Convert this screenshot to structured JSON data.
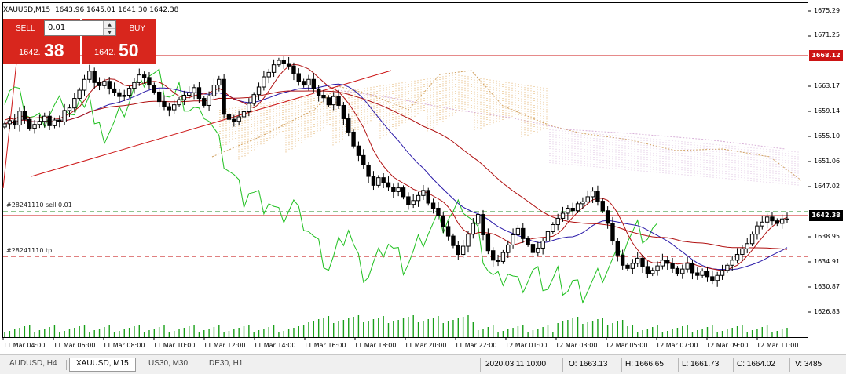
{
  "header": {
    "symbol": "XAUUSD,M15",
    "ohlc": "1643.96 1645.01 1641.30 1642.38"
  },
  "trade_panel": {
    "sell_label": "SELL",
    "buy_label": "BUY",
    "lot_value": "0.01",
    "sell_price_small": "1642.",
    "sell_price_big": "38",
    "buy_price_small": "1642.",
    "buy_price_big": "50"
  },
  "orders": {
    "sell_order_label": "#28241110 sell 0.01",
    "tp_order_label": "#28241110 tp"
  },
  "price_axis": {
    "labels": [
      "1675.29",
      "1671.25",
      "1663.17",
      "1659.14",
      "1655.10",
      "1651.06",
      "1647.02",
      "1638.95",
      "1634.91",
      "1630.87",
      "1626.83"
    ],
    "ask_line_price": "1668.12",
    "bid_price": "1642.38"
  },
  "time_axis": [
    "11 Mar 04:00",
    "11 Mar 06:00",
    "11 Mar 08:00",
    "11 Mar 10:00",
    "11 Mar 12:00",
    "11 Mar 14:00",
    "11 Mar 16:00",
    "11 Mar 18:00",
    "11 Mar 20:00",
    "11 Mar 22:00",
    "12 Mar 01:00",
    "12 Mar 03:00",
    "12 Mar 05:00",
    "12 Mar 07:00",
    "12 Mar 09:00",
    "12 Mar 11:00"
  ],
  "tabs": [
    {
      "label": "AUDUSD, H4",
      "active": false
    },
    {
      "label": "XAUUSD, M15",
      "active": true
    },
    {
      "label": "US30, M30",
      "active": false
    },
    {
      "label": "DE30, H1",
      "active": false
    }
  ],
  "status_bar": {
    "datetime": "2020.03.11 10:00",
    "open": "O: 1663.13",
    "high": "H: 1666.65",
    "low": "L: 1661.73",
    "close": "C: 1664.02",
    "volume": "V: 3485"
  },
  "colors": {
    "sell_buy_bg": "#d8261d",
    "ask_line": "#cc1414",
    "tp_line": "#c00000",
    "open_order_line": "#1f8a1f",
    "chikou_span": "#20c020",
    "kijun_sen": "#2a1aa8",
    "tenkan_sen": "#b01010",
    "volume_bars": "#1aa01a",
    "candles": "#000000"
  }
}
